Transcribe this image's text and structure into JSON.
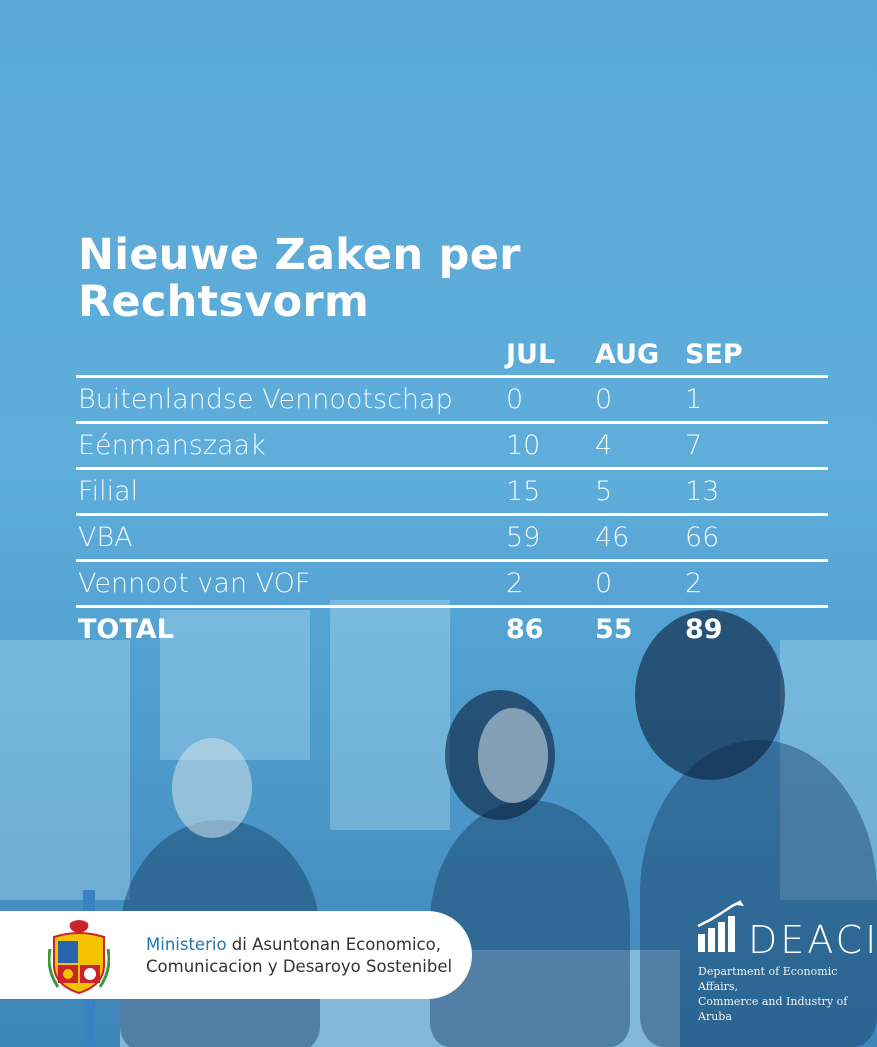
{
  "title": {
    "line1": "Nieuwe Zaken per",
    "line2": "Rechtsvorm"
  },
  "table": {
    "columns": [
      "JUL",
      "AUG",
      "SEP"
    ],
    "rows": [
      {
        "label": "Buitenlandse Vennootschap",
        "values": [
          "0",
          "0",
          "1"
        ]
      },
      {
        "label": "Eénmanszaak",
        "values": [
          "10",
          "4",
          "7"
        ]
      },
      {
        "label": "Filial",
        "values": [
          "15",
          "5",
          "13"
        ]
      },
      {
        "label": "VBA",
        "values": [
          "59",
          "46",
          "66"
        ]
      },
      {
        "label": "Vennoot van VOF",
        "values": [
          "2",
          "0",
          "2"
        ]
      }
    ],
    "total": {
      "label": "TOTAL",
      "values": [
        "86",
        "55",
        "89"
      ]
    }
  },
  "ministry": {
    "accent": "Ministerio",
    "line1_rest": " di Asuntonan Economico,",
    "line2": "Comunicacion y Desaroyo Sostenibel"
  },
  "deaci": {
    "name": "DEACI",
    "line1": "Department of Economic Affairs,",
    "line2": "Commerce and Industry of Aruba"
  },
  "colors": {
    "background": "#5aa9d6",
    "text": "#ffffff",
    "ministry_accent": "#1f77b4"
  }
}
